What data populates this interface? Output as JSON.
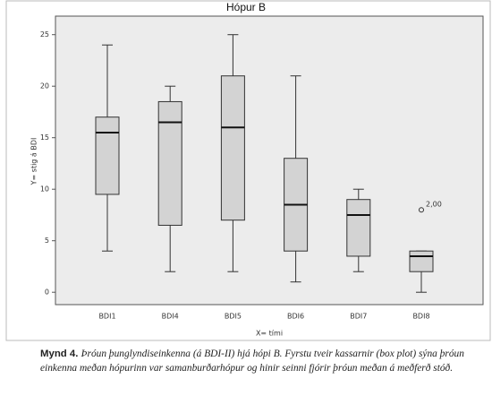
{
  "chart_data": {
    "type": "box",
    "title": "Hópur B",
    "x_label": "X= tími",
    "y_label": "Y= stig á BDI",
    "categories": [
      "BDI1",
      "BDI4",
      "BDI5",
      "BDI6",
      "BDI7",
      "BDI8"
    ],
    "boxes": [
      {
        "min": 4,
        "q1": 9.5,
        "median": 15.5,
        "q3": 17,
        "max": 24
      },
      {
        "min": 2,
        "q1": 6.5,
        "median": 16.5,
        "q3": 18.5,
        "max": 20
      },
      {
        "min": 2,
        "q1": 7,
        "median": 16,
        "q3": 21,
        "max": 25
      },
      {
        "min": 1,
        "q1": 4,
        "median": 8.5,
        "q3": 13,
        "max": 21
      },
      {
        "min": 2,
        "q1": 3.5,
        "median": 7.5,
        "q3": 9,
        "max": 10
      },
      {
        "min": 0,
        "q1": 2,
        "median": 3.5,
        "q3": 4,
        "max": 4,
        "outliers": [
          {
            "value": 8,
            "label": "2,00"
          }
        ]
      }
    ],
    "color": "#d3d3d3",
    "ylim": [
      -1.2,
      26.8
    ],
    "yticks": [
      0,
      5,
      10,
      15,
      20,
      25
    ]
  },
  "caption": {
    "label": "Mynd 4.",
    "text": "Þróun þunglyndiseinkenna (á BDI-II) hjá hópi B. Fyrstu tveir kassarnir (box plot) sýna þróun einkenna meðan hópurinn var samanburðarhópur og hinir seinni fjórir þróun meðan á meðferð stóð."
  }
}
